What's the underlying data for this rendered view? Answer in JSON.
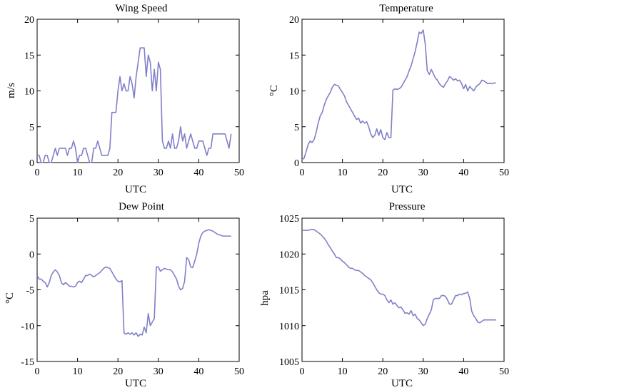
{
  "chart_data": [
    {
      "type": "line",
      "title": "Wing Speed",
      "xlabel": "UTC",
      "ylabel": "m/s",
      "xlim": [
        0,
        50
      ],
      "ylim": [
        0,
        20
      ],
      "xticks": [
        0,
        10,
        20,
        30,
        40,
        50
      ],
      "yticks": [
        0,
        5,
        10,
        15,
        20
      ],
      "color": "#8080c8",
      "x": [
        0,
        0.5,
        1,
        1.5,
        2,
        2.5,
        3,
        3.5,
        4,
        4.5,
        5,
        5.5,
        6,
        6.5,
        7,
        7.5,
        8,
        8.5,
        9,
        9.5,
        10,
        10.5,
        11,
        11.5,
        12,
        12.5,
        13,
        13.5,
        14,
        14.5,
        15,
        15.5,
        16,
        16.5,
        17,
        17.5,
        18,
        18.5,
        19,
        19.5,
        20,
        20.5,
        21,
        21.5,
        22,
        22.5,
        23,
        23.5,
        24,
        24.5,
        25,
        25.5,
        26,
        26.5,
        27,
        27.5,
        28,
        28.5,
        29,
        29.5,
        30,
        30.5,
        31,
        31.5,
        32,
        32.5,
        33,
        33.5,
        34,
        34.5,
        35,
        35.5,
        36,
        36.5,
        37,
        37.5,
        38,
        38.5,
        39,
        39.5,
        40,
        40.5,
        41,
        41.5,
        42,
        42.5,
        43,
        43.5,
        44,
        44.5,
        45,
        45.5,
        46,
        46.5,
        47,
        47.5,
        48
      ],
      "y": [
        1,
        1,
        0,
        0,
        1,
        1,
        0,
        0,
        1,
        2,
        1,
        2,
        2,
        2,
        2,
        1,
        2,
        2,
        3,
        2,
        0,
        1,
        1,
        2,
        2,
        1,
        0,
        0,
        2,
        2,
        3,
        2,
        1,
        1,
        1,
        1,
        2,
        7,
        7,
        7,
        10,
        12,
        10,
        11,
        10,
        10,
        12,
        11,
        9,
        12,
        14,
        16,
        16,
        16,
        12,
        15,
        14,
        10,
        13,
        10,
        14,
        13,
        3,
        2,
        2,
        3,
        2,
        4,
        2,
        2,
        3,
        5,
        3,
        4,
        2,
        3,
        4,
        3,
        2,
        2,
        3,
        3,
        3,
        2,
        1,
        2,
        2,
        4,
        4,
        4,
        4,
        4,
        4,
        4,
        3,
        2,
        4
      ]
    },
    {
      "type": "line",
      "title": "Temperature",
      "xlabel": "UTC",
      "ylabel": "°C",
      "xlim": [
        0,
        50
      ],
      "ylim": [
        0,
        20
      ],
      "xticks": [
        0,
        10,
        20,
        30,
        40,
        50
      ],
      "yticks": [
        0,
        5,
        10,
        15,
        20
      ],
      "color": "#8080c8",
      "x": [
        0,
        0.5,
        1,
        1.5,
        2,
        2.5,
        3,
        3.5,
        4,
        4.5,
        5,
        5.5,
        6,
        6.5,
        7,
        7.5,
        8,
        8.5,
        9,
        9.5,
        10,
        10.5,
        11,
        11.5,
        12,
        12.5,
        13,
        13.5,
        14,
        14.5,
        15,
        15.5,
        16,
        16.5,
        17,
        17.5,
        18,
        18.5,
        19,
        19.5,
        20,
        20.5,
        21,
        21.5,
        22,
        22.5,
        23,
        23.5,
        24,
        24.5,
        25,
        25.5,
        26,
        26.5,
        27,
        27.5,
        28,
        28.5,
        29,
        29.5,
        30,
        30.5,
        31,
        31.5,
        32,
        32.5,
        33,
        33.5,
        34,
        34.5,
        35,
        35.5,
        36,
        36.5,
        37,
        37.5,
        38,
        38.5,
        39,
        39.5,
        40,
        40.5,
        41,
        41.5,
        42,
        42.5,
        43,
        43.5,
        44,
        44.5,
        45,
        45.5,
        46,
        46.5,
        47,
        47.5,
        48
      ],
      "y": [
        0.4,
        0.6,
        1.5,
        2.5,
        3.0,
        2.8,
        3.2,
        4.2,
        5.5,
        6.5,
        7.0,
        8.0,
        8.8,
        9.3,
        9.8,
        10.5,
        10.9,
        10.8,
        10.7,
        10.2,
        9.8,
        9.3,
        8.5,
        8.0,
        7.5,
        7.0,
        6.5,
        6.0,
        6.2,
        5.5,
        5.8,
        5.5,
        5.7,
        5.0,
        4.0,
        3.5,
        3.8,
        4.7,
        3.8,
        4.6,
        3.5,
        3.2,
        4.2,
        3.5,
        3.5,
        10.1,
        10.3,
        10.2,
        10.3,
        10.5,
        11.0,
        11.5,
        12.0,
        12.8,
        13.5,
        14.5,
        15.5,
        16.8,
        18.2,
        18.0,
        18.5,
        16.5,
        12.8,
        12.3,
        13.0,
        12.4,
        11.8,
        11.5,
        11.0,
        10.7,
        10.5,
        11.0,
        11.4,
        12.0,
        11.8,
        11.5,
        11.7,
        11.4,
        11.5,
        11.0,
        10.3,
        10.9,
        10.0,
        10.6,
        10.3,
        10.0,
        10.5,
        10.8,
        11.0,
        11.5,
        11.4,
        11.2,
        11.0,
        11.1,
        11.0,
        11.1,
        11.1
      ]
    },
    {
      "type": "line",
      "title": "Dew Point",
      "xlabel": "UTC",
      "ylabel": "°C",
      "xlim": [
        0,
        50
      ],
      "ylim": [
        -15,
        5
      ],
      "xticks": [
        0,
        10,
        20,
        30,
        40,
        50
      ],
      "yticks": [
        -15,
        -10,
        -5,
        0,
        5
      ],
      "color": "#8080c8",
      "x": [
        0,
        0.5,
        1,
        1.5,
        2,
        2.5,
        3,
        3.5,
        4,
        4.5,
        5,
        5.5,
        6,
        6.5,
        7,
        7.5,
        8,
        8.5,
        9,
        9.5,
        10,
        10.5,
        11,
        11.5,
        12,
        12.5,
        13,
        13.5,
        14,
        14.5,
        15,
        15.5,
        16,
        16.5,
        17,
        17.5,
        18,
        18.5,
        19,
        19.5,
        20,
        20.5,
        21,
        21.5,
        22,
        22.5,
        23,
        23.5,
        24,
        24.5,
        25,
        25.5,
        26,
        26.5,
        27,
        27.5,
        28,
        28.5,
        29,
        29.5,
        30,
        30.5,
        31,
        31.5,
        32,
        32.5,
        33,
        33.5,
        34,
        34.5,
        35,
        35.5,
        36,
        36.5,
        37,
        37.5,
        38,
        38.5,
        39,
        39.5,
        40,
        40.5,
        41,
        41.5,
        42,
        42.5,
        43,
        43.5,
        44,
        44.5,
        45,
        45.5,
        46,
        46.5,
        47,
        47.5,
        48
      ],
      "y": [
        -3.0,
        -3.5,
        -3.5,
        -3.8,
        -4.0,
        -4.6,
        -4.0,
        -3.0,
        -2.5,
        -2.2,
        -2.5,
        -3.0,
        -4.0,
        -4.3,
        -4.0,
        -4.2,
        -4.5,
        -4.5,
        -4.6,
        -4.5,
        -4.0,
        -3.8,
        -4.0,
        -3.5,
        -3.0,
        -3.0,
        -2.8,
        -3.0,
        -3.2,
        -3.0,
        -2.8,
        -2.6,
        -2.3,
        -2.0,
        -1.8,
        -1.9,
        -2.0,
        -2.5,
        -3.0,
        -3.5,
        -3.8,
        -3.9,
        -3.7,
        -11.0,
        -11.2,
        -11.0,
        -11.2,
        -11.0,
        -11.3,
        -11.0,
        -11.5,
        -11.2,
        -11.3,
        -10.2,
        -11.0,
        -8.3,
        -10.0,
        -9.5,
        -9.0,
        -1.8,
        -1.8,
        -2.4,
        -2.2,
        -2.0,
        -2.1,
        -2.2,
        -2.2,
        -2.5,
        -3.0,
        -3.5,
        -4.5,
        -5.0,
        -4.8,
        -3.8,
        -0.5,
        -0.8,
        -1.8,
        -1.9,
        -1.0,
        0.0,
        1.5,
        2.5,
        3.0,
        3.2,
        3.3,
        3.4,
        3.3,
        3.2,
        3.0,
        2.8,
        2.7,
        2.6,
        2.5,
        2.5,
        2.5,
        2.5,
        2.5
      ]
    },
    {
      "type": "line",
      "title": "Pressure",
      "xlabel": "UTC",
      "ylabel": "hpa",
      "xlim": [
        0,
        50
      ],
      "ylim": [
        1005,
        1025
      ],
      "xticks": [
        0,
        10,
        20,
        30,
        40,
        50
      ],
      "yticks": [
        1005,
        1010,
        1015,
        1020,
        1025
      ],
      "color": "#8080c8",
      "x": [
        0,
        0.5,
        1,
        1.5,
        2,
        2.5,
        3,
        3.5,
        4,
        4.5,
        5,
        5.5,
        6,
        6.5,
        7,
        7.5,
        8,
        8.5,
        9,
        9.5,
        10,
        10.5,
        11,
        11.5,
        12,
        12.5,
        13,
        13.5,
        14,
        14.5,
        15,
        15.5,
        16,
        16.5,
        17,
        17.5,
        18,
        18.5,
        19,
        19.5,
        20,
        20.5,
        21,
        21.5,
        22,
        22.5,
        23,
        23.5,
        24,
        24.5,
        25,
        25.5,
        26,
        26.5,
        27,
        27.5,
        28,
        28.5,
        29,
        29.5,
        30,
        30.5,
        31,
        31.5,
        32,
        32.5,
        33,
        33.5,
        34,
        34.5,
        35,
        35.5,
        36,
        36.5,
        37,
        37.5,
        38,
        38.5,
        39,
        39.5,
        40,
        40.5,
        41,
        41.5,
        42,
        42.5,
        43,
        43.5,
        44,
        44.5,
        45,
        45.5,
        46,
        46.5,
        47,
        47.5,
        48
      ],
      "y": [
        1023.3,
        1023.3,
        1023.3,
        1023.3,
        1023.4,
        1023.4,
        1023.4,
        1023.2,
        1023.0,
        1022.8,
        1022.5,
        1022.2,
        1021.8,
        1021.3,
        1020.9,
        1020.4,
        1020.0,
        1019.5,
        1019.5,
        1019.3,
        1019.0,
        1018.8,
        1018.5,
        1018.2,
        1018.0,
        1018.0,
        1017.8,
        1017.7,
        1017.7,
        1017.5,
        1017.3,
        1017.0,
        1016.8,
        1016.6,
        1016.4,
        1016.0,
        1015.5,
        1015.0,
        1014.6,
        1014.4,
        1014.4,
        1014.2,
        1013.6,
        1013.2,
        1013.6,
        1013.0,
        1013.2,
        1012.8,
        1012.5,
        1012.6,
        1012.2,
        1011.7,
        1011.8,
        1011.6,
        1012.1,
        1011.4,
        1011.6,
        1011.0,
        1010.8,
        1010.4,
        1010.0,
        1010.2,
        1011.0,
        1011.6,
        1012.2,
        1013.6,
        1013.8,
        1013.8,
        1013.8,
        1014.2,
        1014.2,
        1014.1,
        1013.6,
        1013.0,
        1013.0,
        1013.6,
        1014.2,
        1014.2,
        1014.4,
        1014.3,
        1014.5,
        1014.5,
        1014.7,
        1013.8,
        1012.0,
        1011.4,
        1011.0,
        1010.5,
        1010.4,
        1010.6,
        1010.8,
        1010.8,
        1010.8,
        1010.8,
        1010.8,
        1010.8,
        1010.8
      ]
    }
  ]
}
